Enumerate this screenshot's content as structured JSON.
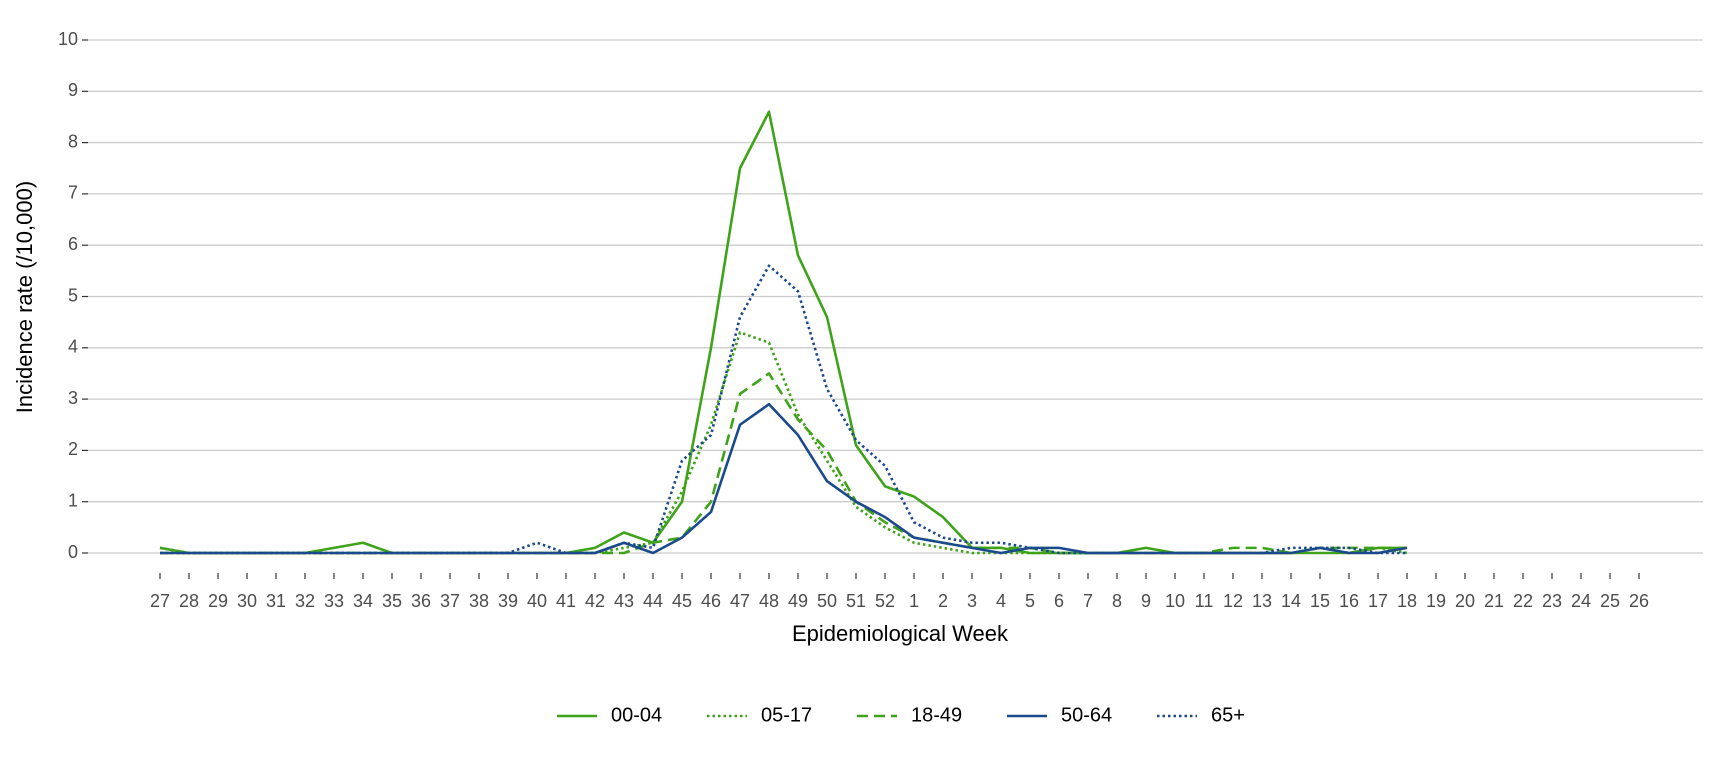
{
  "chart_data": {
    "type": "line",
    "xlabel": "Epidemiological Week",
    "ylabel": "Incidence rate (/10,000)",
    "categories": [
      "27",
      "28",
      "29",
      "30",
      "31",
      "32",
      "33",
      "34",
      "35",
      "36",
      "37",
      "38",
      "39",
      "40",
      "41",
      "42",
      "43",
      "44",
      "45",
      "46",
      "47",
      "48",
      "49",
      "50",
      "51",
      "52",
      "1",
      "2",
      "3",
      "4",
      "5",
      "6",
      "7",
      "8",
      "9",
      "10",
      "11",
      "12",
      "13",
      "14",
      "15",
      "16",
      "17",
      "18",
      "19",
      "20",
      "21",
      "22",
      "23",
      "24",
      "25",
      "26"
    ],
    "ylim": [
      0,
      10
    ],
    "yticks": [
      0,
      1,
      2,
      3,
      4,
      5,
      6,
      7,
      8,
      9,
      10
    ],
    "grid": true,
    "legend": "bottom",
    "series": [
      {
        "name": "00-04",
        "color": "#3fa31a",
        "linestyle": "solid",
        "values": [
          0.1,
          0,
          0,
          0,
          0,
          0,
          0.1,
          0.2,
          0,
          0,
          0,
          0,
          0,
          0,
          0,
          0.1,
          0.4,
          0.2,
          1.0,
          4.0,
          7.5,
          8.6,
          5.8,
          4.6,
          2.1,
          1.3,
          1.1,
          0.7,
          0.1,
          0.1,
          0,
          0,
          0,
          0,
          0.1,
          0,
          0,
          0,
          0,
          0,
          0,
          0,
          0.1,
          0.1,
          null,
          null,
          null,
          null,
          null,
          null,
          null,
          null
        ]
      },
      {
        "name": "05-17",
        "color": "#3fa31a",
        "linestyle": "dotted",
        "values": [
          0.1,
          0,
          0,
          0,
          0,
          0,
          0,
          0,
          0,
          0,
          0,
          0,
          0,
          0,
          0,
          0,
          0.1,
          0.2,
          1.2,
          2.5,
          4.3,
          4.1,
          2.7,
          1.8,
          0.9,
          0.5,
          0.2,
          0.1,
          0,
          0,
          0,
          0,
          0,
          0,
          0,
          0,
          0,
          0,
          0,
          0,
          0.1,
          0,
          0.1,
          0,
          null,
          null,
          null,
          null,
          null,
          null,
          null,
          null
        ]
      },
      {
        "name": "18-49",
        "color": "#3fa31a",
        "linestyle": "dashed",
        "values": [
          0,
          0,
          0,
          0,
          0,
          0,
          0,
          0,
          0,
          0,
          0,
          0,
          0,
          0,
          0,
          0,
          0,
          0.2,
          0.3,
          1.0,
          3.1,
          3.5,
          2.6,
          2.0,
          1.0,
          0.6,
          0.3,
          0.2,
          0.1,
          0.1,
          0.1,
          0,
          0,
          0,
          0,
          0,
          0,
          0.1,
          0.1,
          0,
          0.1,
          0.1,
          0.1,
          0.1,
          null,
          null,
          null,
          null,
          null,
          null,
          null,
          null
        ]
      },
      {
        "name": "50-64",
        "color": "#1b4a8c",
        "linestyle": "solid",
        "values": [
          0,
          0,
          0,
          0,
          0,
          0,
          0,
          0,
          0,
          0,
          0,
          0,
          0,
          0,
          0,
          0,
          0.2,
          0,
          0.3,
          0.8,
          2.5,
          2.9,
          2.3,
          1.4,
          1.0,
          0.7,
          0.3,
          0.2,
          0.1,
          0,
          0.1,
          0.1,
          0,
          0,
          0,
          0,
          0,
          0,
          0,
          0,
          0.1,
          0,
          0,
          0.1,
          null,
          null,
          null,
          null,
          null,
          null,
          null,
          null
        ]
      },
      {
        "name": "65+",
        "color": "#1b4a8c",
        "linestyle": "dotted",
        "values": [
          0,
          0,
          0,
          0,
          0,
          0,
          0,
          0,
          0,
          0,
          0,
          0,
          0,
          0.2,
          0,
          0,
          0.2,
          0.1,
          1.8,
          2.3,
          4.6,
          5.6,
          5.1,
          3.2,
          2.2,
          1.7,
          0.6,
          0.3,
          0.2,
          0.2,
          0.1,
          0,
          0,
          0,
          0,
          0,
          0,
          0,
          0,
          0.1,
          0.1,
          0.1,
          0,
          0,
          null,
          null,
          null,
          null,
          null,
          null,
          null,
          null
        ]
      }
    ]
  }
}
